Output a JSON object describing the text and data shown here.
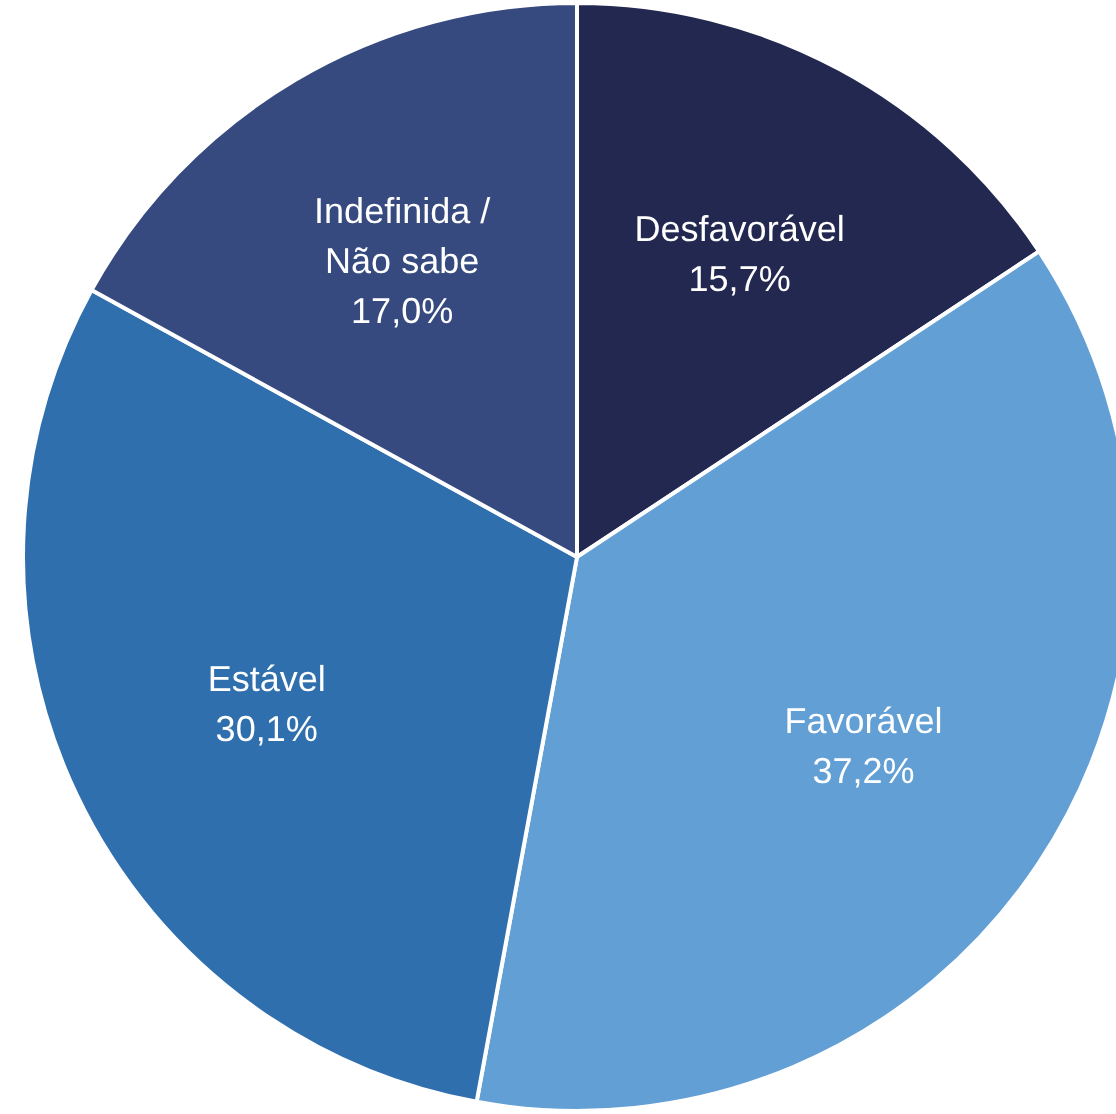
{
  "chart_data": {
    "type": "pie",
    "categories": [
      "Desfavorável",
      "Favorável",
      "Estável",
      "Indefinida / Não sabe"
    ],
    "values": [
      15.7,
      37.2,
      30.1,
      17.0
    ],
    "colors": [
      "#232850",
      "#629fd4",
      "#2f6fad",
      "#364a7f"
    ],
    "value_labels": [
      "15,7%",
      "37,2%",
      "30,1%",
      "17,0%"
    ],
    "legend": false
  }
}
